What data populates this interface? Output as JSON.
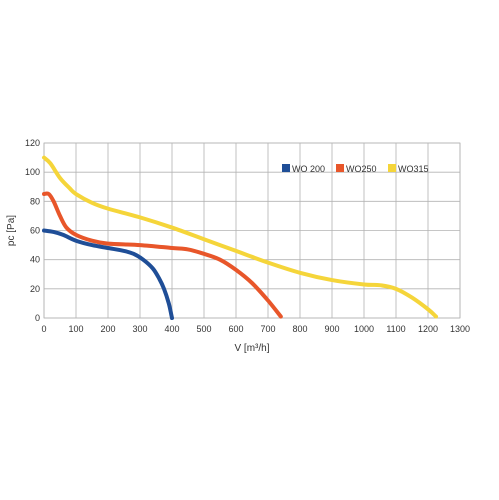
{
  "chart_data": {
    "type": "line",
    "title": "",
    "xlabel": "V [m³/h]",
    "ylabel": "pc [Pa]",
    "xlim": [
      0,
      1300
    ],
    "ylim": [
      0,
      120
    ],
    "xticks": [
      0,
      100,
      200,
      300,
      400,
      500,
      600,
      700,
      800,
      900,
      1000,
      1100,
      1200,
      1300
    ],
    "yticks": [
      0,
      20,
      40,
      60,
      80,
      100,
      120
    ],
    "grid": true,
    "legend": "top-right",
    "series": [
      {
        "name": "WO 200",
        "color": "#1f4e97",
        "points": [
          [
            0,
            60
          ],
          [
            30,
            59
          ],
          [
            60,
            57
          ],
          [
            100,
            53
          ],
          [
            150,
            50
          ],
          [
            200,
            48
          ],
          [
            250,
            46
          ],
          [
            280,
            44
          ],
          [
            310,
            40
          ],
          [
            340,
            34
          ],
          [
            360,
            27
          ],
          [
            375,
            20
          ],
          [
            390,
            10
          ],
          [
            398,
            2
          ],
          [
            400,
            0
          ]
        ]
      },
      {
        "name": "WO250",
        "color": "#e8562a",
        "points": [
          [
            0,
            85
          ],
          [
            15,
            85
          ],
          [
            30,
            80
          ],
          [
            50,
            70
          ],
          [
            70,
            62
          ],
          [
            100,
            57
          ],
          [
            150,
            53
          ],
          [
            200,
            51
          ],
          [
            300,
            50
          ],
          [
            400,
            48
          ],
          [
            450,
            47
          ],
          [
            500,
            44
          ],
          [
            550,
            40
          ],
          [
            600,
            33
          ],
          [
            650,
            24
          ],
          [
            700,
            12
          ],
          [
            740,
            1
          ]
        ]
      },
      {
        "name": "WO315",
        "color": "#f5d53a",
        "points": [
          [
            0,
            110
          ],
          [
            20,
            106
          ],
          [
            50,
            96
          ],
          [
            80,
            89
          ],
          [
            100,
            85
          ],
          [
            150,
            79
          ],
          [
            200,
            75
          ],
          [
            300,
            69
          ],
          [
            400,
            62
          ],
          [
            500,
            54
          ],
          [
            600,
            46
          ],
          [
            700,
            38
          ],
          [
            800,
            31
          ],
          [
            900,
            26
          ],
          [
            1000,
            23
          ],
          [
            1050,
            22.5
          ],
          [
            1100,
            20
          ],
          [
            1150,
            14
          ],
          [
            1200,
            6
          ],
          [
            1225,
            1
          ]
        ]
      }
    ]
  }
}
